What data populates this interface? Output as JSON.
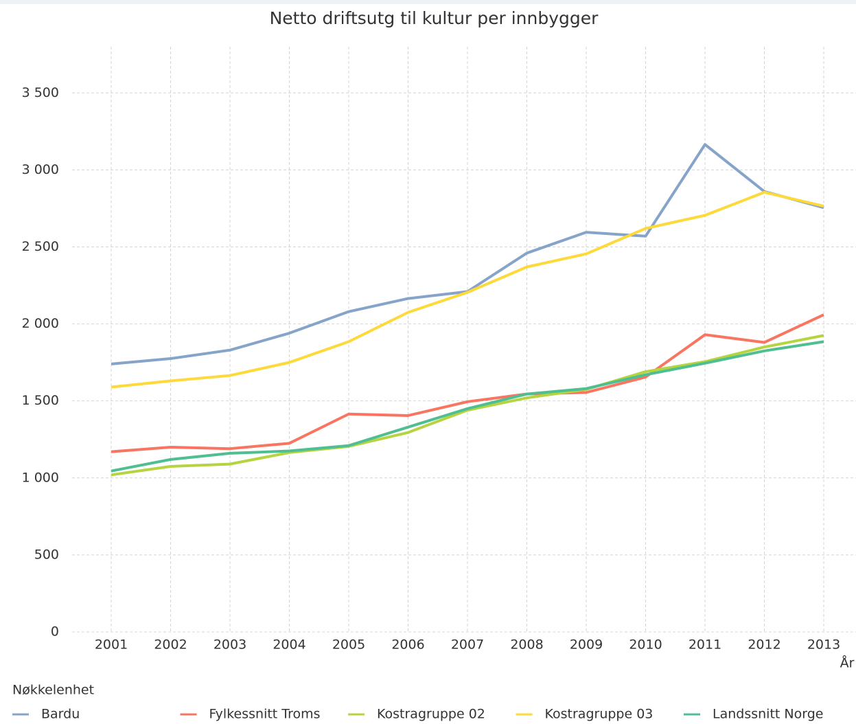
{
  "chart_data": {
    "type": "line",
    "title": "Netto driftsutg  til kultur per innbygger",
    "x_label": "År",
    "legend_title": "Nøkkelenhet",
    "legend": "bottom",
    "grid": true,
    "categories": [
      "2001",
      "2002",
      "2003",
      "2004",
      "2005",
      "2006",
      "2007",
      "2008",
      "2009",
      "2010",
      "2011",
      "2012",
      "2013"
    ],
    "ylim": [
      0,
      3800
    ],
    "yticks": [
      0,
      500,
      {
        "value": 1000,
        "label": "1 000"
      },
      {
        "value": 1500,
        "label": "1 500"
      },
      {
        "value": 2000,
        "label": "2 000"
      },
      {
        "value": 2500,
        "label": "2 500"
      },
      {
        "value": 3000,
        "label": "3 000"
      },
      {
        "value": 3500,
        "label": "3 500"
      }
    ],
    "series": [
      {
        "name": "Bardu",
        "color": "#86a4c9",
        "values": [
          1740,
          1775,
          1830,
          1940,
          2080,
          2165,
          2210,
          2460,
          2595,
          2570,
          3165,
          2860,
          2755
        ]
      },
      {
        "name": "Fylkessnitt Troms",
        "color": "#f87562",
        "values": [
          1170,
          1200,
          1190,
          1225,
          1415,
          1405,
          1495,
          1545,
          1555,
          1655,
          1930,
          1880,
          2060
        ]
      },
      {
        "name": "Kostragruppe 02",
        "color": "#b5d440",
        "values": [
          1020,
          1075,
          1090,
          1165,
          1205,
          1295,
          1440,
          1520,
          1575,
          1690,
          1755,
          1850,
          1925
        ]
      },
      {
        "name": "Kostragruppe 03",
        "color": "#fdd93a",
        "values": [
          1590,
          1630,
          1665,
          1750,
          1885,
          2075,
          2205,
          2370,
          2455,
          2620,
          2705,
          2855,
          2765
        ]
      },
      {
        "name": "Landssnitt Norge",
        "color": "#4fbf91",
        "values": [
          1045,
          1120,
          1160,
          1175,
          1210,
          1330,
          1450,
          1545,
          1580,
          1670,
          1745,
          1825,
          1885
        ]
      }
    ]
  }
}
